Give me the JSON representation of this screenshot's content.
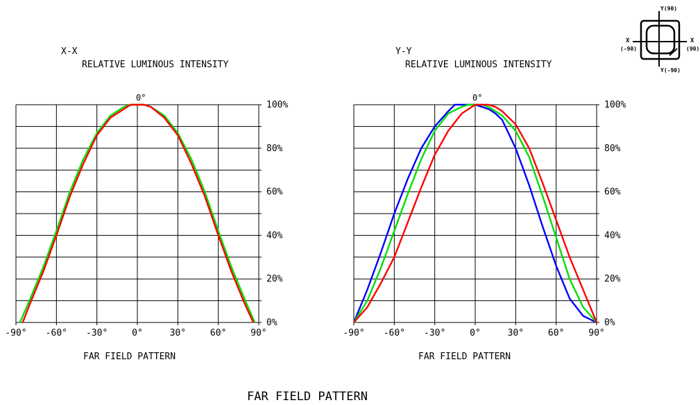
{
  "page_title": "FAR FIELD PATTERN",
  "orientation_icon": {
    "labels": {
      "top": "Y(90)",
      "bottom": "Y(-90)",
      "left_axis": "X",
      "left_angle": "(-90)",
      "right_axis": "X",
      "right_angle": "(90)"
    }
  },
  "colors": {
    "red": "#ff0000",
    "green": "#00e000",
    "blue": "#0000ff",
    "grid": "#000000"
  },
  "chart_data": [
    {
      "type": "line",
      "axis_label": "X-X",
      "title": "RELATIVE LUMINOUS INTENSITY",
      "xlabel": "FAR FIELD PATTERN",
      "top_label": "0°",
      "xlim": [
        -90,
        90
      ],
      "ylim": [
        0,
        100
      ],
      "x_ticks": [
        "-90°",
        "-60°",
        "-30°",
        "0°",
        "30°",
        "60°",
        "90°"
      ],
      "y_ticks": [
        "0%",
        "20%",
        "40%",
        "60%",
        "80%",
        "100%"
      ],
      "series": [
        {
          "color": "#00e000",
          "x": [
            -87,
            -80,
            -70,
            -60,
            -50,
            -40,
            -30,
            -20,
            -10,
            -5,
            0,
            5,
            10,
            20,
            30,
            40,
            50,
            60,
            70,
            80,
            87
          ],
          "y": [
            0,
            10,
            25,
            42,
            60,
            75,
            87,
            95,
            99,
            100,
            100,
            100,
            99,
            95,
            87,
            75,
            60,
            42,
            25,
            10,
            0
          ]
        },
        {
          "color": "#ff0000",
          "x": [
            -85,
            -80,
            -70,
            -60,
            -50,
            -40,
            -30,
            -20,
            -10,
            -5,
            0,
            5,
            10,
            20,
            30,
            40,
            50,
            60,
            70,
            80,
            86
          ],
          "y": [
            0,
            8,
            23,
            40,
            58,
            73,
            86,
            94,
            98,
            100,
            100,
            100,
            99,
            94,
            86,
            73,
            58,
            40,
            23,
            8,
            0
          ]
        }
      ]
    },
    {
      "type": "line",
      "axis_label": "Y-Y",
      "title": "RELATIVE LUMINOUS INTENSITY",
      "xlabel": "FAR FIELD PATTERN",
      "top_label": "0°",
      "xlim": [
        -90,
        90
      ],
      "ylim": [
        0,
        100
      ],
      "x_ticks": [
        "-90°",
        "-60°",
        "-30°",
        "0°",
        "30°",
        "60°",
        "90°"
      ],
      "y_ticks": [
        "0%",
        "20%",
        "40%",
        "60%",
        "80%",
        "100%"
      ],
      "series": [
        {
          "color": "#0000ff",
          "x": [
            -90,
            -80,
            -70,
            -60,
            -50,
            -40,
            -30,
            -20,
            -15,
            -10,
            -5,
            0,
            5,
            10,
            15,
            20,
            30,
            40,
            50,
            60,
            70,
            80,
            90
          ],
          "y": [
            0,
            15,
            32,
            50,
            66,
            80,
            90,
            97,
            100,
            100,
            100,
            100,
            99,
            98,
            96,
            93,
            80,
            63,
            44,
            26,
            11,
            3,
            0
          ]
        },
        {
          "color": "#00e000",
          "x": [
            -90,
            -80,
            -70,
            -60,
            -50,
            -40,
            -30,
            -20,
            -10,
            -5,
            0,
            5,
            10,
            20,
            30,
            40,
            50,
            60,
            70,
            80,
            90
          ],
          "y": [
            0,
            10,
            25,
            42,
            59,
            75,
            88,
            96,
            99,
            100,
            100,
            100,
            99,
            95,
            88,
            76,
            58,
            39,
            20,
            7,
            0
          ]
        },
        {
          "color": "#ff0000",
          "x": [
            -90,
            -80,
            -70,
            -60,
            -50,
            -40,
            -30,
            -20,
            -10,
            -5,
            0,
            5,
            10,
            15,
            20,
            30,
            40,
            50,
            60,
            70,
            80,
            90
          ],
          "y": [
            0,
            7,
            18,
            30,
            46,
            62,
            77,
            88,
            96,
            98,
            100,
            100,
            100,
            99,
            97,
            91,
            80,
            64,
            47,
            30,
            15,
            0
          ]
        }
      ]
    }
  ]
}
